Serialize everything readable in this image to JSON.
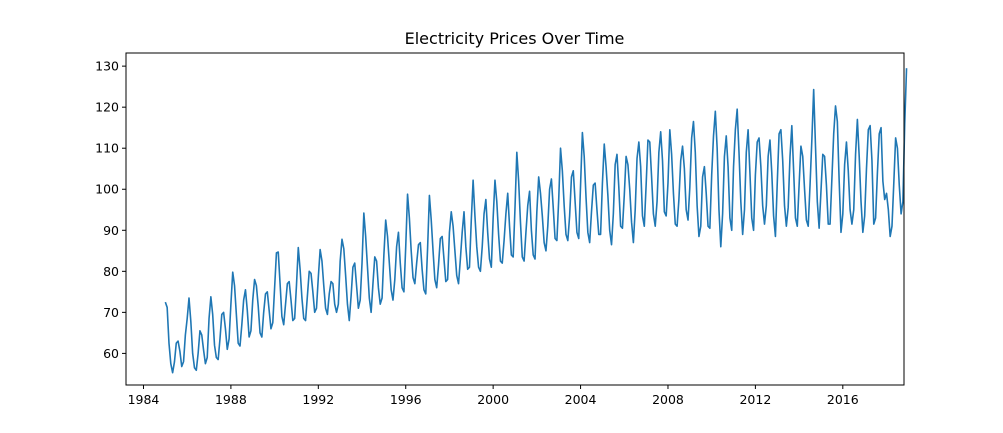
{
  "chart_data": {
    "type": "line",
    "title": "Electricity Prices Over Time",
    "xlabel": "",
    "ylabel": "",
    "xlim": [
      1983.2,
      2018.8
    ],
    "ylim": [
      52.3,
      133.2
    ],
    "x_ticks": [
      1984,
      1988,
      1992,
      1996,
      2000,
      2004,
      2008,
      2012,
      2016
    ],
    "y_ticks": [
      60,
      70,
      80,
      90,
      100,
      110,
      120,
      130
    ],
    "grid": false,
    "line_color": "#1f77b4",
    "series": [
      {
        "start_year": 1985,
        "start_month": 1,
        "frequency": "monthly",
        "values": [
          72.5,
          71.2,
          62.5,
          57.5,
          55.3,
          57.9,
          62.5,
          63.0,
          60.5,
          56.8,
          58.0,
          64.5,
          68.5,
          73.5,
          67.8,
          60.0,
          56.5,
          55.9,
          60.0,
          65.5,
          64.5,
          60.8,
          57.5,
          59.0,
          68.5,
          73.8,
          69.5,
          62.0,
          59.0,
          58.5,
          63.5,
          69.5,
          70.0,
          66.0,
          61.0,
          63.5,
          72.0,
          79.8,
          76.5,
          69.5,
          62.5,
          61.8,
          67.0,
          73.0,
          75.5,
          70.5,
          64.0,
          65.5,
          73.0,
          78.0,
          76.5,
          71.5,
          65.0,
          64.0,
          70.0,
          74.5,
          75.0,
          70.5,
          66.0,
          67.5,
          76.0,
          84.5,
          84.7,
          77.0,
          69.0,
          67.0,
          72.0,
          77.0,
          77.5,
          73.0,
          68.0,
          68.5,
          76.5,
          85.8,
          80.5,
          73.5,
          68.5,
          68.0,
          74.0,
          80.0,
          79.5,
          75.0,
          70.0,
          71.0,
          78.5,
          85.3,
          82.5,
          76.5,
          71.0,
          69.5,
          74.5,
          77.5,
          77.0,
          72.0,
          70.0,
          72.0,
          82.5,
          87.8,
          85.5,
          79.0,
          72.0,
          68.0,
          74.0,
          81.0,
          82.0,
          76.5,
          71.0,
          73.0,
          82.0,
          94.2,
          88.5,
          81.0,
          73.5,
          70.0,
          77.0,
          83.5,
          82.5,
          76.0,
          72.0,
          73.5,
          84.0,
          92.5,
          88.5,
          82.0,
          75.5,
          73.0,
          78.0,
          86.0,
          89.5,
          82.0,
          76.0,
          75.0,
          86.0,
          98.8,
          93.0,
          85.0,
          78.5,
          77.0,
          82.0,
          86.5,
          87.0,
          80.5,
          75.5,
          74.5,
          85.5,
          98.5,
          92.5,
          85.0,
          78.0,
          76.0,
          81.5,
          88.0,
          88.5,
          83.0,
          77.5,
          78.0,
          89.5,
          94.5,
          91.0,
          85.0,
          79.0,
          77.0,
          83.0,
          89.5,
          94.5,
          86.0,
          80.5,
          81.0,
          92.5,
          102.2,
          93.5,
          86.0,
          81.0,
          80.0,
          86.0,
          94.0,
          97.5,
          89.5,
          83.0,
          81.0,
          93.0,
          102.2,
          97.0,
          89.0,
          82.5,
          82.0,
          87.5,
          94.0,
          99.0,
          91.0,
          84.0,
          83.5,
          95.5,
          109.0,
          102.0,
          92.0,
          83.5,
          82.5,
          89.5,
          96.0,
          99.5,
          90.0,
          84.0,
          83.0,
          94.5,
          103.0,
          99.0,
          93.5,
          87.0,
          85.0,
          91.0,
          100.0,
          102.5,
          95.5,
          88.0,
          87.5,
          97.5,
          110.0,
          104.5,
          96.0,
          89.0,
          87.5,
          93.5,
          103.0,
          104.5,
          97.0,
          89.5,
          88.0,
          101.0,
          113.8,
          108.0,
          98.0,
          89.5,
          87.0,
          94.5,
          101.0,
          101.5,
          95.0,
          89.0,
          89.0,
          101.5,
          111.0,
          105.5,
          98.5,
          90.0,
          86.5,
          94.0,
          106.0,
          108.5,
          100.5,
          91.0,
          90.5,
          98.5,
          108.0,
          106.0,
          100.0,
          92.0,
          87.0,
          95.0,
          107.5,
          111.5,
          105.5,
          93.5,
          91.0,
          101.0,
          112.0,
          111.5,
          103.0,
          94.0,
          91.0,
          97.0,
          109.0,
          114.0,
          107.0,
          94.5,
          93.5,
          101.5,
          114.5,
          108.5,
          99.0,
          91.5,
          91.0,
          97.5,
          107.0,
          110.5,
          105.0,
          95.0,
          92.5,
          100.5,
          112.5,
          116.5,
          109.0,
          96.0,
          88.5,
          91.0,
          103.0,
          105.5,
          99.0,
          91.0,
          90.5,
          103.5,
          113.0,
          119.0,
          110.0,
          95.0,
          86.0,
          94.0,
          108.0,
          113.0,
          105.5,
          93.0,
          90.0,
          105.5,
          114.5,
          119.5,
          109.0,
          97.0,
          89.0,
          95.0,
          109.0,
          114.5,
          104.0,
          93.0,
          90.0,
          103.5,
          111.5,
          112.5,
          105.5,
          96.0,
          91.5,
          96.0,
          108.0,
          112.0,
          104.0,
          93.5,
          88.5,
          101.5,
          113.5,
          114.5,
          107.0,
          96.0,
          91.0,
          95.5,
          108.0,
          115.5,
          104.5,
          93.0,
          91.0,
          101.0,
          110.5,
          108.0,
          100.0,
          92.5,
          91.0,
          101.0,
          112.0,
          124.3,
          110.5,
          97.0,
          90.5,
          99.5,
          108.5,
          108.0,
          101.0,
          91.5,
          91.5,
          102.5,
          113.5,
          120.3,
          116.5,
          102.0,
          89.5,
          94.0,
          106.0,
          111.5,
          104.5,
          95.0,
          91.5,
          95.0,
          108.5,
          117.0,
          108.0,
          97.0,
          89.5,
          93.5,
          105.0,
          114.5,
          115.5,
          107.0,
          91.5,
          93.0,
          104.0,
          113.5,
          115.0,
          102.0,
          97.5,
          99.0,
          95.0,
          88.5,
          91.0,
          101.5,
          112.5,
          110.0,
          101.0,
          94.0,
          97.0,
          116.0,
          129.5
        ]
      }
    ]
  }
}
